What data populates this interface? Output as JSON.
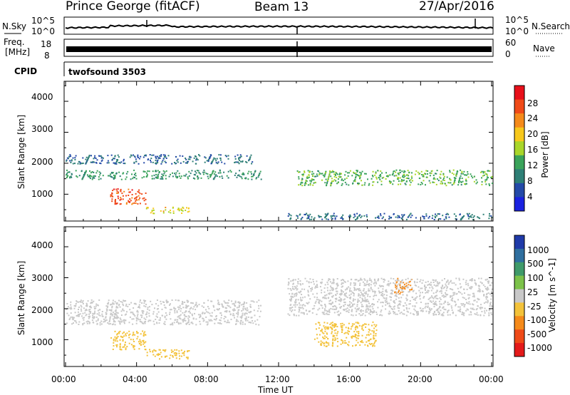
{
  "header": {
    "station": "Prince George (fitACF)",
    "beam": "Beam 13",
    "date": "27/Apr/2016"
  },
  "top_panels": {
    "nsky_label": "N.Sky",
    "nsky_ticks": [
      "10^5",
      "10^0"
    ],
    "nsearch_label": "N.Search",
    "nsearch_ticks": [
      "10^5",
      "10^0"
    ],
    "freq_label_line1": "Freq.",
    "freq_label_line2": "[MHz]",
    "freq_ticks": [
      "18",
      "8"
    ],
    "nave_label": "Nave",
    "nave_ticks": [
      "60",
      "0"
    ],
    "cpid_label": "CPID",
    "cpid_value": "twofsound 3503"
  },
  "panels": {
    "ylabel": "Slant Range [km]",
    "yticks": [
      "4000",
      "3000",
      "2000",
      "1000"
    ],
    "xticks": [
      "00:00",
      "04:00",
      "08:00",
      "12:00",
      "16:00",
      "20:00",
      "00:00"
    ],
    "xlabel": "Time UT"
  },
  "power_scale": {
    "label": "Power [dB]",
    "ticks": [
      "28",
      "24",
      "20",
      "16",
      "12",
      "8",
      "4"
    ],
    "colors": [
      "#e8101a",
      "#f04a18",
      "#f58a1a",
      "#f7c81c",
      "#a9d62a",
      "#3aa35a",
      "#2e7f76",
      "#244aa8",
      "#1a22e0"
    ]
  },
  "velocity_scale": {
    "label": "Velocity [m s^-1]",
    "ticks": [
      "1000",
      "500",
      "100",
      "25",
      "-25",
      "-100",
      "-500",
      "-1000"
    ],
    "colors": [
      "#1f3aa8",
      "#2f6f9f",
      "#3f9a6a",
      "#7cc24a",
      "#c8c8c8",
      "#f3c23a",
      "#f58a1a",
      "#ef4a18",
      "#e41a1a"
    ]
  },
  "chart_data": [
    {
      "type": "heatmap",
      "title": "Prince George (fitACF) Beam 13 27/Apr/2016",
      "xlabel": "Time UT",
      "ylabel": "Slant Range [km]",
      "xlim": [
        0,
        24
      ],
      "ylim": [
        180,
        4600
      ],
      "colorbar": {
        "label": "Power [dB]",
        "range": [
          0,
          30
        ]
      },
      "features": [
        {
          "t_start": 0.0,
          "t_end": 11.0,
          "range_start": 1500,
          "range_end": 1800,
          "value": 10
        },
        {
          "t_start": 0.0,
          "t_end": 10.5,
          "range_start": 2000,
          "range_end": 2300,
          "value": 6
        },
        {
          "t_start": 2.5,
          "t_end": 4.5,
          "range_start": 700,
          "range_end": 1200,
          "value": 26
        },
        {
          "t_start": 4.5,
          "t_end": 7.0,
          "range_start": 400,
          "range_end": 600,
          "value": 18
        },
        {
          "t_start": 13.0,
          "t_end": 24.0,
          "range_start": 1300,
          "range_end": 1800,
          "value": 12
        },
        {
          "t_start": 12.5,
          "t_end": 24.0,
          "range_start": 200,
          "range_end": 400,
          "value": 6
        }
      ]
    },
    {
      "type": "heatmap",
      "title": "Prince George (fitACF) Beam 13 27/Apr/2016",
      "xlabel": "Time UT",
      "ylabel": "Slant Range [km]",
      "xlim": [
        0,
        24
      ],
      "ylim": [
        180,
        4600
      ],
      "colorbar": {
        "label": "Velocity [m s^-1]",
        "range": [
          -1000,
          1000
        ]
      },
      "features": [
        {
          "t_start": 0.0,
          "t_end": 11.0,
          "range_start": 1500,
          "range_end": 2300,
          "value": 0
        },
        {
          "t_start": 2.5,
          "t_end": 4.5,
          "range_start": 700,
          "range_end": 1300,
          "value": -200
        },
        {
          "t_start": 4.5,
          "t_end": 7.0,
          "range_start": 400,
          "range_end": 700,
          "value": -300
        },
        {
          "t_start": 14.0,
          "t_end": 17.5,
          "range_start": 800,
          "range_end": 1600,
          "value": -200
        },
        {
          "t_start": 18.5,
          "t_end": 19.5,
          "range_start": 2500,
          "range_end": 3000,
          "value": -500
        },
        {
          "t_start": 12.5,
          "t_end": 24.0,
          "range_start": 1800,
          "range_end": 3000,
          "value": 0
        }
      ]
    }
  ]
}
